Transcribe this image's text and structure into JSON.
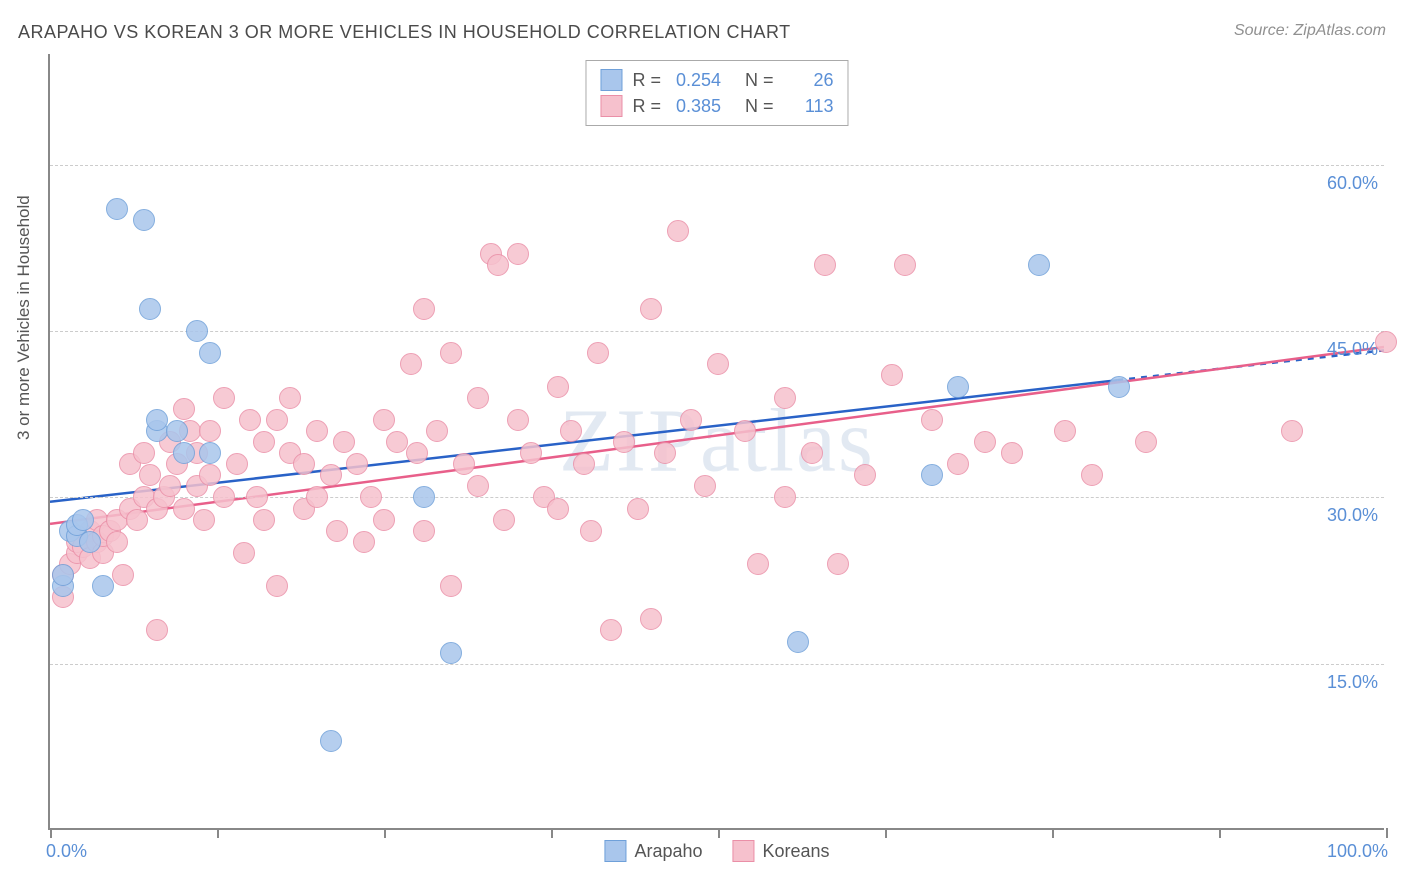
{
  "title": "ARAPAHO VS KOREAN 3 OR MORE VEHICLES IN HOUSEHOLD CORRELATION CHART",
  "source": "Source: ZipAtlas.com",
  "y_axis_label": "3 or more Vehicles in Household",
  "watermark": "ZIPatlas",
  "chart": {
    "type": "scatter",
    "xlim": [
      0,
      100
    ],
    "ylim": [
      0,
      70
    ],
    "x_ticks": [
      0,
      12.5,
      25,
      37.5,
      50,
      62.5,
      75,
      87.5,
      100
    ],
    "x_tick_labels": {
      "0": "0.0%",
      "100": "100.0%"
    },
    "y_gridlines": [
      15,
      30,
      45,
      60
    ],
    "y_tick_labels": {
      "15": "15.0%",
      "30": "30.0%",
      "45": "45.0%",
      "60": "60.0%"
    },
    "background_color": "#ffffff",
    "grid_color": "#cccccc",
    "axis_color": "#888888",
    "tick_label_color": "#5a8fd6",
    "axis_label_color": "#555555",
    "title_color": "#4a4a4a",
    "marker_radius": 11,
    "marker_stroke_width": 1.5,
    "marker_fill_opacity": 0.35,
    "series": [
      {
        "name": "Arapaho",
        "color_fill": "#a9c6ec",
        "color_stroke": "#6fa0d9",
        "line_color": "#2962c7",
        "line_width": 2.5,
        "R": "0.254",
        "N": "26",
        "regression": {
          "x1": 0,
          "y1": 29.5,
          "x2": 80,
          "y2": 40.5,
          "dash_x2": 100,
          "dash_y2": 43.2
        },
        "points": [
          [
            1,
            22
          ],
          [
            1,
            23
          ],
          [
            1.5,
            27
          ],
          [
            2,
            26.5
          ],
          [
            2,
            27.5
          ],
          [
            2.5,
            28
          ],
          [
            3,
            26
          ],
          [
            4,
            22
          ],
          [
            5,
            56
          ],
          [
            7,
            55
          ],
          [
            7.5,
            47
          ],
          [
            8,
            36
          ],
          [
            8,
            37
          ],
          [
            9.5,
            36
          ],
          [
            10,
            34
          ],
          [
            11,
            45
          ],
          [
            12,
            43
          ],
          [
            12,
            34
          ],
          [
            21,
            8
          ],
          [
            28,
            30
          ],
          [
            30,
            16
          ],
          [
            56,
            17
          ],
          [
            66,
            32
          ],
          [
            68,
            40
          ],
          [
            74,
            51
          ],
          [
            80,
            40
          ]
        ]
      },
      {
        "name": "Koreans",
        "color_fill": "#f6c1cd",
        "color_stroke": "#ea8fa7",
        "line_color": "#e85f8a",
        "line_width": 2.5,
        "R": "0.385",
        "N": "113",
        "regression": {
          "x1": 0,
          "y1": 27.5,
          "x2": 100,
          "y2": 43.5
        },
        "points": [
          [
            1,
            21
          ],
          [
            1,
            23
          ],
          [
            1.5,
            24
          ],
          [
            2,
            25
          ],
          [
            2,
            26
          ],
          [
            2.5,
            25.5
          ],
          [
            3,
            24.5
          ],
          [
            3,
            27
          ],
          [
            3.5,
            26
          ],
          [
            3.5,
            28
          ],
          [
            4,
            25
          ],
          [
            4,
            26.5
          ],
          [
            4.5,
            27
          ],
          [
            5,
            26
          ],
          [
            5,
            28
          ],
          [
            5.5,
            23
          ],
          [
            6,
            29
          ],
          [
            6,
            33
          ],
          [
            6.5,
            28
          ],
          [
            7,
            30
          ],
          [
            7,
            34
          ],
          [
            7.5,
            32
          ],
          [
            8,
            18
          ],
          [
            8,
            29
          ],
          [
            8.5,
            30
          ],
          [
            9,
            31
          ],
          [
            9,
            35
          ],
          [
            9.5,
            33
          ],
          [
            10,
            29
          ],
          [
            10,
            38
          ],
          [
            10.5,
            36
          ],
          [
            11,
            31
          ],
          [
            11,
            34
          ],
          [
            11.5,
            28
          ],
          [
            12,
            32
          ],
          [
            12,
            36
          ],
          [
            13,
            30
          ],
          [
            13,
            39
          ],
          [
            14,
            33
          ],
          [
            14.5,
            25
          ],
          [
            15,
            37
          ],
          [
            15.5,
            30
          ],
          [
            16,
            35
          ],
          [
            16,
            28
          ],
          [
            17,
            22
          ],
          [
            17,
            37
          ],
          [
            18,
            34
          ],
          [
            18,
            39
          ],
          [
            19,
            29
          ],
          [
            19,
            33
          ],
          [
            20,
            36
          ],
          [
            20,
            30
          ],
          [
            21,
            32
          ],
          [
            21.5,
            27
          ],
          [
            22,
            35
          ],
          [
            23,
            33
          ],
          [
            23.5,
            26
          ],
          [
            24,
            30
          ],
          [
            25,
            37
          ],
          [
            25,
            28
          ],
          [
            26,
            35
          ],
          [
            27,
            42
          ],
          [
            27.5,
            34
          ],
          [
            28,
            27
          ],
          [
            28,
            47
          ],
          [
            29,
            36
          ],
          [
            30,
            22
          ],
          [
            30,
            43
          ],
          [
            31,
            33
          ],
          [
            32,
            39
          ],
          [
            32,
            31
          ],
          [
            33,
            52
          ],
          [
            33.5,
            51
          ],
          [
            34,
            28
          ],
          [
            35,
            52
          ],
          [
            35,
            37
          ],
          [
            36,
            34
          ],
          [
            37,
            30
          ],
          [
            38,
            29
          ],
          [
            38,
            40
          ],
          [
            39,
            36
          ],
          [
            40,
            33
          ],
          [
            40.5,
            27
          ],
          [
            41,
            43
          ],
          [
            42,
            18
          ],
          [
            43,
            35
          ],
          [
            44,
            29
          ],
          [
            45,
            19
          ],
          [
            45,
            47
          ],
          [
            46,
            34
          ],
          [
            47,
            54
          ],
          [
            48,
            37
          ],
          [
            49,
            31
          ],
          [
            50,
            42
          ],
          [
            52,
            36
          ],
          [
            53,
            24
          ],
          [
            55,
            30
          ],
          [
            55,
            39
          ],
          [
            57,
            34
          ],
          [
            58,
            51
          ],
          [
            59,
            24
          ],
          [
            61,
            32
          ],
          [
            63,
            41
          ],
          [
            64,
            51
          ],
          [
            66,
            37
          ],
          [
            68,
            33
          ],
          [
            70,
            35
          ],
          [
            72,
            34
          ],
          [
            76,
            36
          ],
          [
            78,
            32
          ],
          [
            82,
            35
          ],
          [
            93,
            36
          ],
          [
            100,
            44
          ]
        ]
      }
    ]
  },
  "bottom_legend": [
    {
      "label": "Arapaho",
      "fill": "#a9c6ec",
      "stroke": "#6fa0d9"
    },
    {
      "label": "Koreans",
      "fill": "#f6c1cd",
      "stroke": "#ea8fa7"
    }
  ]
}
